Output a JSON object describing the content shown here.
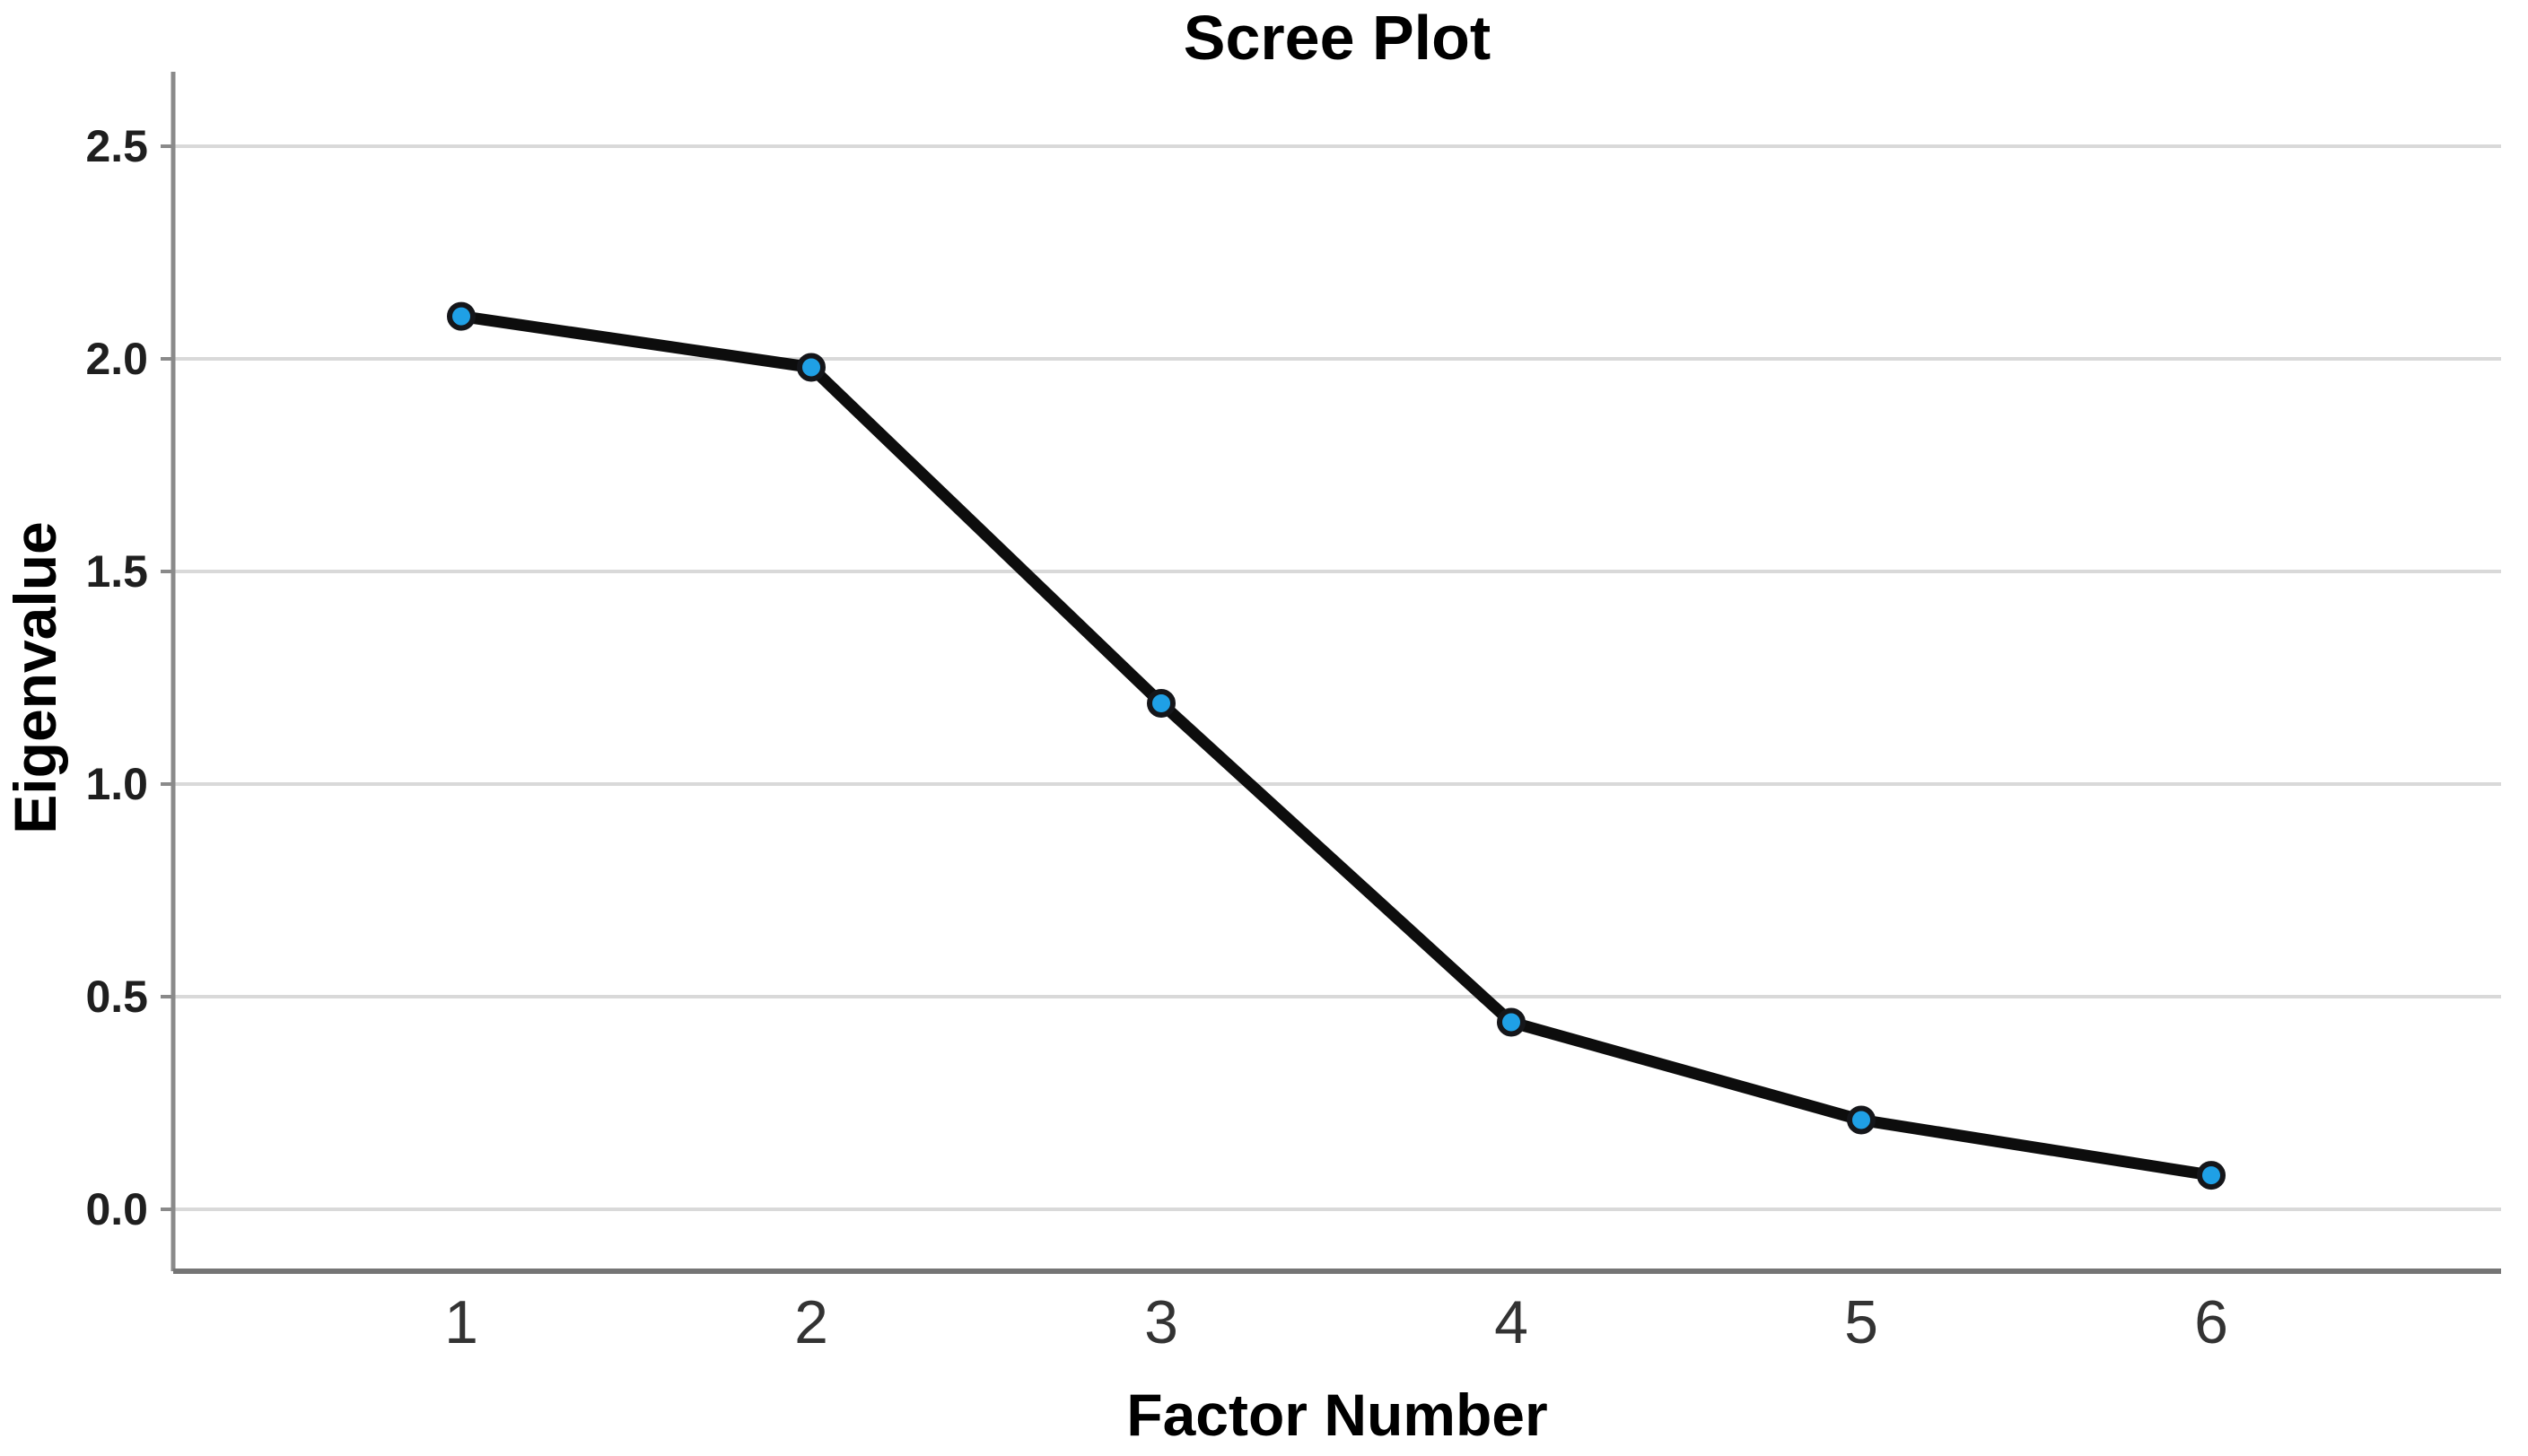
{
  "page": {
    "background": "#ffffff"
  },
  "chart_data": {
    "type": "line",
    "title": "Scree Plot",
    "xlabel": "Factor Number",
    "ylabel": "Eigenvalue",
    "categories": [
      1,
      2,
      3,
      4,
      5,
      6
    ],
    "x_tick_labels": [
      "1",
      "2",
      "3",
      "4",
      "5",
      "6"
    ],
    "series": [
      {
        "name": "Eigenvalues",
        "values": [
          2.1,
          1.98,
          1.19,
          0.44,
          0.21,
          0.08
        ]
      }
    ],
    "y_ticks": [
      0.0,
      0.5,
      1.0,
      1.5,
      2.0,
      2.5
    ],
    "y_tick_labels": [
      "0.0",
      "0.5",
      "1.0",
      "1.5",
      "2.0",
      "2.5"
    ],
    "ylim": [
      -0.15,
      2.68
    ],
    "grid": "horizontal",
    "legend": "none",
    "colors": {
      "line": "#0d0d0d",
      "marker_fill": "#1fa0e6",
      "marker_stroke": "#15161a",
      "gridline": "#d9d9d9",
      "axis_line": "#8a8a8a",
      "bottom_axis_line": "#757575",
      "tick_mark": "#8a8a8a",
      "title_text": "#000000",
      "axis_label_text": "#000000",
      "y_tick_text": "#1f1f1f",
      "x_tick_text": "#333333"
    }
  }
}
